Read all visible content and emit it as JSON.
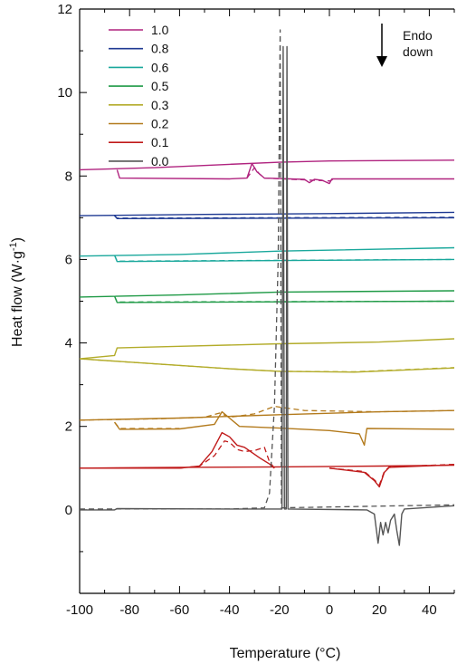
{
  "chart_data": {
    "type": "line",
    "xlabel": "Temperature",
    "xlabel_unit": "(°C)",
    "ylabel": "Heat flow",
    "ylabel_unit_base": "(W·g",
    "ylabel_unit_exp": "-1",
    "ylabel_unit_close": ")",
    "xlim": [
      -100,
      50
    ],
    "ylim": [
      -2,
      12
    ],
    "x_ticks": [
      -100,
      -80,
      -60,
      -40,
      -20,
      0,
      20,
      40
    ],
    "y_ticks": [
      0,
      2,
      4,
      6,
      8,
      10,
      12
    ],
    "grid": false,
    "legend_position": "top-left",
    "annotation": {
      "lines": [
        "Endo",
        "down"
      ]
    },
    "series": [
      {
        "name": "1.0",
        "color": "#b0237f",
        "solid": [
          [
            [
              -100,
              8.15
            ],
            [
              -70,
              8.2
            ],
            [
              -40,
              8.28
            ],
            [
              -20,
              8.33
            ],
            [
              0,
              8.36
            ],
            [
              50,
              8.38
            ]
          ],
          [
            [
              -85,
              8.15
            ],
            [
              -84,
              7.95
            ],
            [
              -40,
              7.93
            ],
            [
              -33,
              7.95
            ],
            [
              -31,
              8.3
            ],
            [
              -29,
              8.1
            ],
            [
              -26,
              7.95
            ],
            [
              -10,
              7.92
            ],
            [
              -8,
              7.84
            ],
            [
              -6,
              7.92
            ],
            [
              -3,
              7.9
            ],
            [
              0,
              7.82
            ],
            [
              1,
              7.93
            ],
            [
              50,
              7.93
            ]
          ]
        ],
        "dashed": [
          [
            [
              -33,
              7.95
            ],
            [
              -30,
              8.2
            ],
            [
              -28,
              8.05
            ],
            [
              -26,
              7.95
            ],
            [
              0,
              7.88
            ],
            [
              2,
              7.93
            ]
          ]
        ]
      },
      {
        "name": "0.8",
        "color": "#1f3a93",
        "solid": [
          [
            [
              -100,
              7.05
            ],
            [
              -50,
              7.08
            ],
            [
              0,
              7.1
            ],
            [
              50,
              7.13
            ]
          ],
          [
            [
              -86,
              7.05
            ],
            [
              -85,
              6.98
            ],
            [
              50,
              7.0
            ]
          ]
        ],
        "dashed": [
          [
            [
              -86,
              7.05
            ],
            [
              -85,
              6.99
            ],
            [
              50,
              7.01
            ]
          ]
        ]
      },
      {
        "name": "0.6",
        "color": "#1aa89c",
        "solid": [
          [
            [
              -100,
              6.08
            ],
            [
              -60,
              6.12
            ],
            [
              -20,
              6.2
            ],
            [
              50,
              6.28
            ]
          ],
          [
            [
              -86,
              6.1
            ],
            [
              -85,
              5.95
            ],
            [
              50,
              6.0
            ]
          ]
        ],
        "dashed": [
          [
            [
              -86,
              6.1
            ],
            [
              -85,
              5.96
            ],
            [
              50,
              6.0
            ]
          ]
        ]
      },
      {
        "name": "0.5",
        "color": "#1f9a46",
        "solid": [
          [
            [
              -100,
              5.1
            ],
            [
              -60,
              5.15
            ],
            [
              -20,
              5.22
            ],
            [
              50,
              5.25
            ]
          ],
          [
            [
              -86,
              5.12
            ],
            [
              -85,
              4.97
            ],
            [
              50,
              5.0
            ]
          ]
        ],
        "dashed": [
          [
            [
              -86,
              5.12
            ],
            [
              -85,
              4.98
            ],
            [
              50,
              5.0
            ]
          ]
        ]
      },
      {
        "name": "0.3",
        "color": "#b3ac2a",
        "solid": [
          [
            [
              -100,
              3.62
            ],
            [
              -86,
              3.7
            ],
            [
              -85,
              3.88
            ],
            [
              -60,
              3.92
            ],
            [
              -20,
              3.98
            ],
            [
              20,
              4.02
            ],
            [
              50,
              4.1
            ]
          ],
          [
            [
              -100,
              3.62
            ],
            [
              -70,
              3.5
            ],
            [
              -40,
              3.38
            ],
            [
              -20,
              3.32
            ],
            [
              10,
              3.3
            ],
            [
              50,
              3.4
            ]
          ]
        ],
        "dashed": [
          [
            [
              -100,
              3.62
            ],
            [
              -70,
              3.5
            ],
            [
              -40,
              3.38
            ],
            [
              -20,
              3.32
            ],
            [
              10,
              3.31
            ],
            [
              50,
              3.41
            ]
          ]
        ]
      },
      {
        "name": "0.2",
        "color": "#b37a1c",
        "solid": [
          [
            [
              -100,
              2.15
            ],
            [
              -60,
              2.2
            ],
            [
              -20,
              2.28
            ],
            [
              20,
              2.35
            ],
            [
              50,
              2.38
            ]
          ],
          [
            [
              -86,
              2.1
            ],
            [
              -84,
              1.93
            ],
            [
              -60,
              1.94
            ],
            [
              -46,
              2.05
            ],
            [
              -43,
              2.35
            ],
            [
              -40,
              2.2
            ],
            [
              -36,
              2.0
            ],
            [
              -20,
              1.96
            ],
            [
              0,
              1.9
            ],
            [
              12,
              1.82
            ],
            [
              14,
              1.55
            ],
            [
              15,
              1.95
            ],
            [
              50,
              1.93
            ]
          ]
        ],
        "dashed": [
          [
            [
              -100,
              2.15
            ],
            [
              -70,
              2.18
            ],
            [
              -50,
              2.22
            ],
            [
              -44,
              2.32
            ],
            [
              -40,
              2.22
            ],
            [
              -30,
              2.3
            ],
            [
              -22,
              2.48
            ],
            [
              -10,
              2.38
            ],
            [
              20,
              2.35
            ],
            [
              50,
              2.38
            ]
          ],
          [
            [
              -86,
              2.1
            ],
            [
              -84,
              1.95
            ],
            [
              -60,
              1.95
            ]
          ]
        ]
      },
      {
        "name": "0.1",
        "color": "#c01a1a",
        "solid": [
          [
            [
              -100,
              1.0
            ],
            [
              -60,
              1.02
            ],
            [
              -20,
              1.03
            ],
            [
              20,
              1.05
            ],
            [
              50,
              1.07
            ]
          ],
          [
            [
              -100,
              1.0
            ],
            [
              -60,
              1.0
            ],
            [
              -52,
              1.05
            ],
            [
              -47,
              1.4
            ],
            [
              -43,
              1.85
            ],
            [
              -40,
              1.75
            ],
            [
              -37,
              1.55
            ],
            [
              -34,
              1.5
            ],
            [
              -28,
              1.25
            ],
            [
              -24,
              1.1
            ],
            [
              -22,
              1.0
            ]
          ],
          [
            [
              0,
              1.0
            ],
            [
              14,
              0.9
            ],
            [
              18,
              0.7
            ],
            [
              20,
              0.55
            ],
            [
              22,
              0.9
            ],
            [
              24,
              1.02
            ],
            [
              50,
              1.08
            ]
          ]
        ],
        "dashed": [
          [
            [
              -60,
              1.0
            ],
            [
              -52,
              1.05
            ],
            [
              -46,
              1.3
            ],
            [
              -42,
              1.65
            ],
            [
              -40,
              1.62
            ],
            [
              -37,
              1.45
            ],
            [
              -34,
              1.4
            ],
            [
              -30,
              1.42
            ],
            [
              -26,
              1.5
            ],
            [
              -24,
              1.15
            ],
            [
              -22,
              1.0
            ]
          ],
          [
            [
              0,
              1.0
            ],
            [
              14,
              0.92
            ],
            [
              18,
              0.72
            ],
            [
              20,
              0.6
            ],
            [
              22,
              0.92
            ],
            [
              24,
              1.03
            ],
            [
              50,
              1.09
            ]
          ]
        ]
      },
      {
        "name": "0.0",
        "color": "#555555",
        "solid": [
          [
            [
              -100,
              0.0
            ],
            [
              -86,
              0.0
            ],
            [
              -85,
              0.03
            ],
            [
              -40,
              0.02
            ],
            [
              -19,
              0.02
            ],
            [
              -18.5,
              11.1
            ],
            [
              -18,
              0.02
            ],
            [
              -17.3,
              0.02
            ],
            [
              -17,
              11.1
            ],
            [
              -16.6,
              0.02
            ],
            [
              15,
              0.0
            ],
            [
              18,
              -0.1
            ],
            [
              19.5,
              -0.8
            ],
            [
              20.5,
              -0.3
            ],
            [
              21.5,
              -0.6
            ],
            [
              22.5,
              -0.3
            ],
            [
              23.5,
              -0.55
            ],
            [
              24.5,
              -0.25
            ],
            [
              26,
              -0.1
            ],
            [
              27,
              -0.5
            ],
            [
              28,
              -0.85
            ],
            [
              29,
              -0.1
            ],
            [
              30,
              0.02
            ],
            [
              50,
              0.1
            ]
          ]
        ],
        "dashed": [
          [
            [
              -100,
              0.02
            ],
            [
              -40,
              0.02
            ],
            [
              -26,
              0.05
            ],
            [
              -24,
              0.4
            ],
            [
              -22,
              2.5
            ],
            [
              -20.5,
              6.0
            ],
            [
              -19.7,
              11.5
            ],
            [
              -19.2,
              0.05
            ],
            [
              50,
              0.12
            ]
          ]
        ]
      }
    ]
  }
}
